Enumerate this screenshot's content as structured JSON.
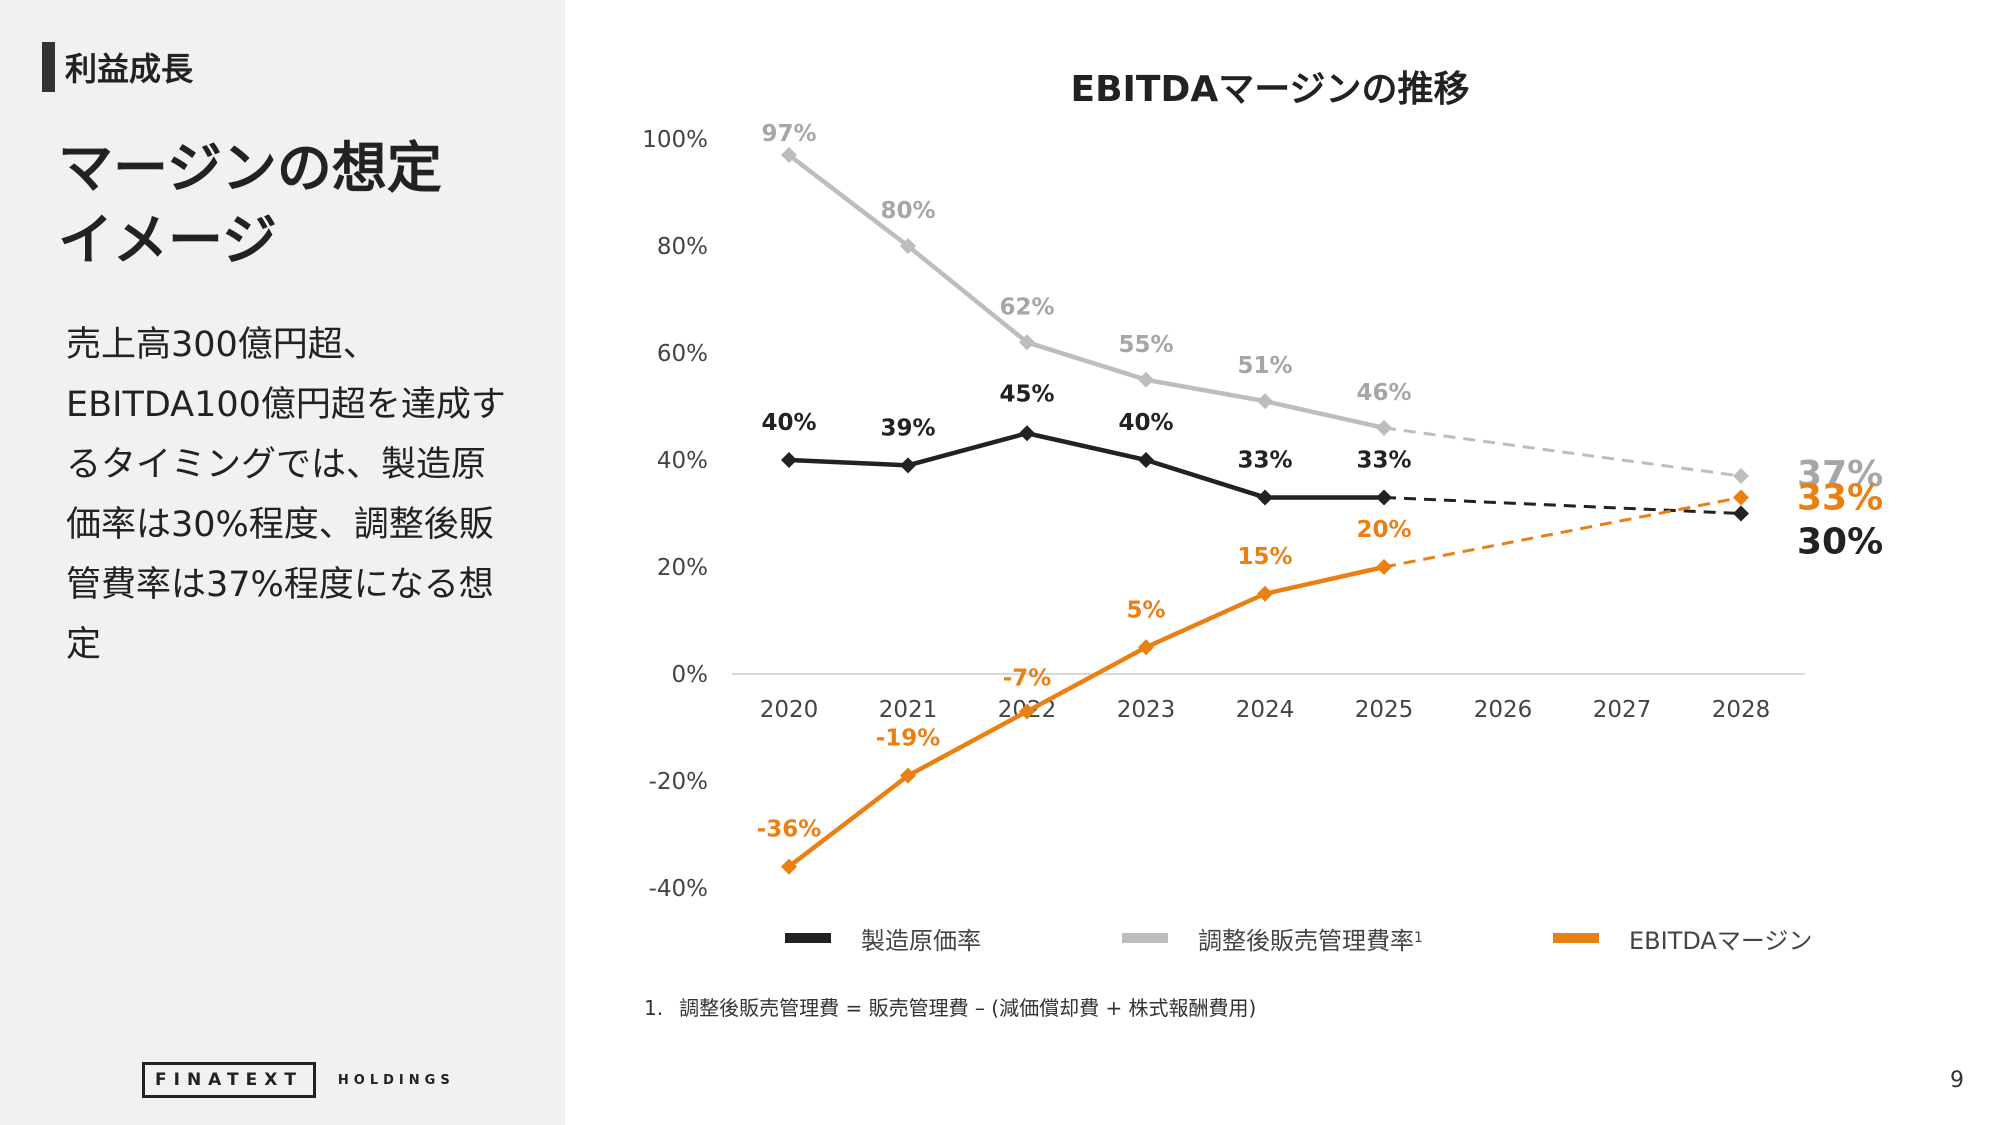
{
  "section": {
    "tag": "利益成長"
  },
  "heading": {
    "line1": "マージンの想定",
    "line2": "イメージ"
  },
  "description": "売上高300億円超、EBITDA100億円超を達成するタイミングでは、製造原価率は30%程度、調整後販管費率は37%程度になる想定",
  "logo": {
    "brand": "FINATEXT",
    "sub": "HOLDINGS"
  },
  "page_number": "9",
  "footnote": {
    "number": "1.",
    "text": "調整後販売管理費 = 販売管理費 – (減価償却費 + 株式報酬費用)"
  },
  "colors": {
    "black": "#222222",
    "gray": "#bdbdbd",
    "gray_label": "#a6a6a6",
    "orange": "#ea7f14"
  },
  "chart_data": {
    "type": "line",
    "title": "EBITDAマージンの推移",
    "categories": [
      "2020",
      "2021",
      "2022",
      "2023",
      "2024",
      "2025",
      "2026",
      "2027",
      "2028"
    ],
    "ylim": [
      -40,
      100
    ],
    "yticks": [
      -40,
      -20,
      0,
      20,
      40,
      60,
      80,
      100
    ],
    "ytick_labels": [
      "-40%",
      "-20%",
      "0%",
      "20%",
      "40%",
      "60%",
      "80%",
      "100%"
    ],
    "xlabel": "",
    "ylabel": "",
    "legend_position": "bottom",
    "series": [
      {
        "name": "製造原価率",
        "legend_label": "製造原価率",
        "legend_sup": "",
        "color": "#222222",
        "label_color": "#222222",
        "actual": [
          40,
          39,
          45,
          40,
          33,
          33
        ],
        "actual_labels": [
          "40%",
          "39%",
          "45%",
          "40%",
          "33%",
          "33%"
        ],
        "projection": {
          "from": "2025",
          "to": "2028",
          "value": 30,
          "label": "30%"
        }
      },
      {
        "name": "調整後販売管理費率",
        "legend_label": "調整後販売管理費率",
        "legend_sup": "1",
        "color": "#bdbdbd",
        "label_color": "#a6a6a6",
        "actual": [
          97,
          80,
          62,
          55,
          51,
          46
        ],
        "actual_labels": [
          "97%",
          "80%",
          "62%",
          "55%",
          "51%",
          "46%"
        ],
        "projection": {
          "from": "2025",
          "to": "2028",
          "value": 37,
          "label": "37%"
        }
      },
      {
        "name": "EBITDAマージン",
        "legend_label": "EBITDAマージン",
        "legend_sup": "",
        "color": "#ea7f14",
        "label_color": "#ea7f14",
        "actual": [
          -36,
          -19,
          -7,
          5,
          15,
          20
        ],
        "actual_labels": [
          "-36%",
          "-19%",
          "-7%",
          "5%",
          "15%",
          "20%"
        ],
        "projection": {
          "from": "2025",
          "to": "2028",
          "value": 33,
          "label": "33%"
        }
      }
    ]
  }
}
